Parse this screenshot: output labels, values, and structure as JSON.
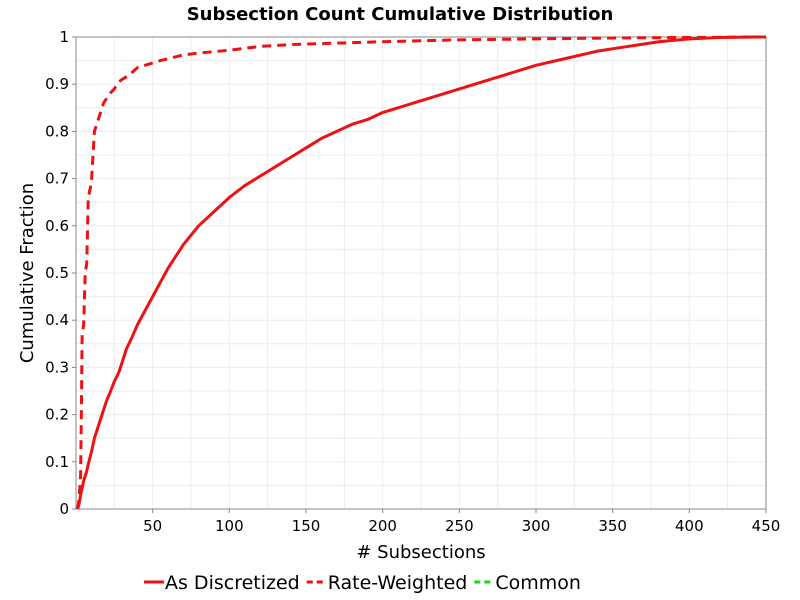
{
  "chart_data": {
    "type": "line",
    "title": "Subsection Count Cumulative Distribution",
    "xlabel": "# Subsections",
    "ylabel": "Cumulative Fraction",
    "xlim": [
      0,
      450
    ],
    "ylim": [
      0,
      1
    ],
    "xticks": [
      50,
      100,
      150,
      200,
      250,
      300,
      350,
      400,
      450
    ],
    "yticks": [
      0,
      0.1,
      0.2,
      0.3,
      0.4,
      0.5,
      0.6,
      0.7,
      0.8,
      0.9,
      1
    ],
    "grid": true,
    "legend_position": "bottom",
    "series": [
      {
        "name": "As Discretized",
        "color": "#ee1111",
        "style": "solid",
        "x": [
          1,
          2,
          3,
          4,
          5,
          6,
          7,
          8,
          10,
          12,
          14,
          16,
          18,
          20,
          22,
          25,
          28,
          30,
          33,
          36,
          40,
          45,
          50,
          55,
          60,
          65,
          70,
          75,
          80,
          90,
          100,
          110,
          120,
          130,
          140,
          150,
          160,
          170,
          180,
          190,
          200,
          220,
          240,
          260,
          280,
          300,
          320,
          340,
          360,
          380,
          400,
          420,
          440,
          450
        ],
        "y": [
          0,
          0.01,
          0.03,
          0.045,
          0.06,
          0.07,
          0.08,
          0.095,
          0.12,
          0.15,
          0.17,
          0.19,
          0.21,
          0.23,
          0.245,
          0.27,
          0.29,
          0.31,
          0.34,
          0.36,
          0.39,
          0.42,
          0.45,
          0.48,
          0.51,
          0.535,
          0.56,
          0.58,
          0.6,
          0.63,
          0.66,
          0.685,
          0.705,
          0.725,
          0.745,
          0.765,
          0.785,
          0.8,
          0.815,
          0.825,
          0.84,
          0.86,
          0.88,
          0.9,
          0.92,
          0.94,
          0.955,
          0.97,
          0.98,
          0.99,
          0.996,
          0.999,
          1,
          1
        ]
      },
      {
        "name": "Rate-Weighted",
        "color": "#ee1111",
        "style": "dashed",
        "x": [
          1,
          2,
          3,
          3.5,
          4,
          5,
          6,
          7,
          8,
          10,
          12,
          14,
          16,
          18,
          20,
          22,
          25,
          28,
          30,
          35,
          40,
          45,
          55,
          65,
          70,
          80,
          100,
          110,
          120,
          140,
          160,
          200,
          250,
          300,
          350,
          400,
          450
        ],
        "y": [
          0,
          0.02,
          0.07,
          0.2,
          0.37,
          0.39,
          0.5,
          0.52,
          0.66,
          0.69,
          0.8,
          0.82,
          0.84,
          0.86,
          0.87,
          0.88,
          0.89,
          0.905,
          0.91,
          0.92,
          0.935,
          0.94,
          0.95,
          0.958,
          0.962,
          0.966,
          0.972,
          0.976,
          0.98,
          0.984,
          0.986,
          0.99,
          0.994,
          0.996,
          0.998,
          0.999,
          1
        ]
      },
      {
        "name": "Common",
        "color": "#11dd11",
        "style": "dashed",
        "x": [],
        "y": []
      }
    ]
  }
}
